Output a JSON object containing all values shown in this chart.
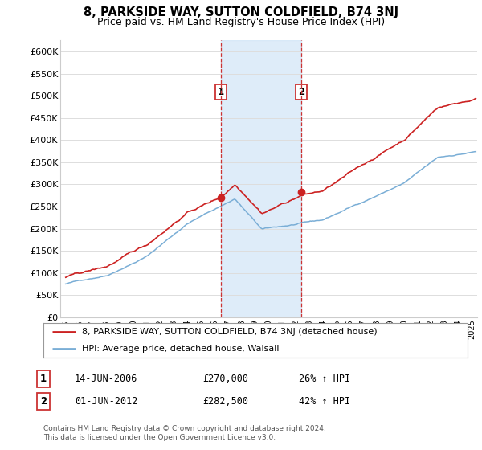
{
  "title": "8, PARKSIDE WAY, SUTTON COLDFIELD, B74 3NJ",
  "subtitle": "Price paid vs. HM Land Registry's House Price Index (HPI)",
  "ylabel_ticks": [
    "£0",
    "£50K",
    "£100K",
    "£150K",
    "£200K",
    "£250K",
    "£300K",
    "£350K",
    "£400K",
    "£450K",
    "£500K",
    "£550K",
    "£600K"
  ],
  "ylim": [
    0,
    620000
  ],
  "xlim_start": 1994.6,
  "xlim_end": 2025.4,
  "transaction1_date": 2006.45,
  "transaction1_price": 270000,
  "transaction1_label": "1",
  "transaction2_date": 2012.42,
  "transaction2_price": 282500,
  "transaction2_label": "2",
  "shade_color": "#d0e4f7",
  "vline_color": "#cc3333",
  "legend_line1": "8, PARKSIDE WAY, SUTTON COLDFIELD, B74 3NJ (detached house)",
  "legend_line2": "HPI: Average price, detached house, Walsall",
  "table_row1": [
    "1",
    "14-JUN-2006",
    "£270,000",
    "26% ↑ HPI"
  ],
  "table_row2": [
    "2",
    "01-JUN-2012",
    "£282,500",
    "42% ↑ HPI"
  ],
  "footer": "Contains HM Land Registry data © Crown copyright and database right 2024.\nThis data is licensed under the Open Government Licence v3.0.",
  "red_line_color": "#cc2222",
  "blue_line_color": "#7aaed6",
  "background_color": "#ffffff",
  "grid_color": "#dddddd"
}
